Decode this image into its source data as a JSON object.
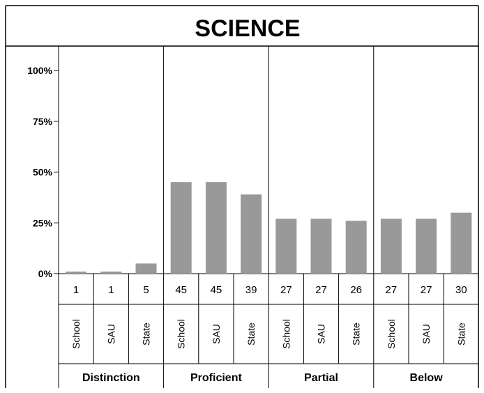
{
  "chart_data": {
    "type": "bar",
    "title": "SCIENCE",
    "yticks": [
      "0%",
      "25%",
      "50%",
      "75%",
      "100%"
    ],
    "ylim": [
      0,
      100
    ],
    "grid": false,
    "bar_color": "#999999",
    "groups": [
      {
        "name": "Distinction",
        "categories": [
          "School",
          "SAU",
          "State"
        ],
        "values": [
          1,
          1,
          5
        ]
      },
      {
        "name": "Proficient",
        "categories": [
          "School",
          "SAU",
          "State"
        ],
        "values": [
          45,
          45,
          39
        ]
      },
      {
        "name": "Partial",
        "categories": [
          "School",
          "SAU",
          "State"
        ],
        "values": [
          27,
          27,
          26
        ]
      },
      {
        "name": "Below",
        "categories": [
          "School",
          "SAU",
          "State"
        ],
        "values": [
          27,
          27,
          30
        ]
      }
    ]
  }
}
